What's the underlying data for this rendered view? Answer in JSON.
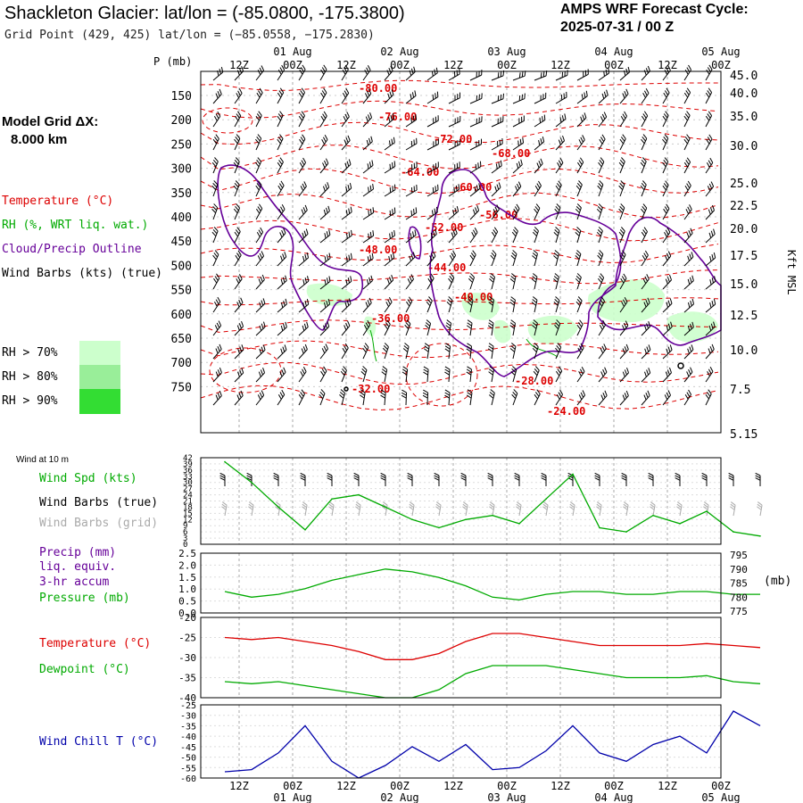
{
  "header": {
    "title": "Shackleton Glacier:  lat/lon = (-85.0800, -175.3800)",
    "subtitle": "Grid Point (429, 425) lat/lon = (−85.0558, −175.2830)",
    "cycle_line1": "AMPS WRF Forecast Cycle:",
    "cycle_line2": "2025-07-31 / 00  Z"
  },
  "legend": {
    "model_grid_label": "Model Grid ΔX:",
    "model_grid_value": "8.000 km",
    "temperature": "Temperature (°C)",
    "rh": "RH (%, WRT liq. wat.)",
    "cloud": "Cloud/Precip Outline",
    "wind": "Wind Barbs (kts) (true)",
    "rh70": "RH > 70%",
    "rh80": "RH > 80%",
    "rh90": "RH > 90%",
    "colors": {
      "rh70": "#ccffcc",
      "rh80": "#99ee99",
      "rh90": "#33dd33"
    }
  },
  "time_axis": {
    "top_hours": [
      "12Z",
      "00Z",
      "12Z",
      "00Z",
      "12Z",
      "00Z",
      "12Z",
      "00Z",
      "12Z",
      "00Z"
    ],
    "top_dates": [
      "01 Aug",
      "02 Aug",
      "03 Aug",
      "04 Aug",
      "05 Aug"
    ],
    "bottom_hours": [
      "12Z",
      "00Z",
      "12Z",
      "00Z",
      "12Z",
      "00Z",
      "12Z",
      "00Z",
      "12Z",
      "00Z"
    ],
    "bottom_dates": [
      "01 Aug",
      "02 Aug",
      "03 Aug",
      "04 Aug",
      "05 Aug"
    ]
  },
  "panel_labels": {
    "p_mb": "P (mb)",
    "kft": "Kft MSL",
    "wind10m": "Wind at 10 m",
    "wind_spd": "Wind Spd (kts)",
    "wind_true": "Wind Barbs (true)",
    "wind_grid": "Wind Barbs (grid)",
    "precip1": "Precip (mm)",
    "precip2": "liq. equiv.",
    "precip3": "3-hr accum",
    "pressure": "Pressure (mb)",
    "pressure_unit": "(mb)",
    "temperature": "Temperature (°C)",
    "dewpoint": "Dewpoint (°C)",
    "windchill": "Wind Chill T (°C)"
  },
  "colors": {
    "temperature": "#dd0000",
    "rh_dewpoint": "#00aa00",
    "cloud": "#660099",
    "wind_grid": "#aaaaaa",
    "windchill": "#0000aa"
  },
  "chart_data": [
    {
      "type": "heatmap",
      "name": "cross-section",
      "y_left_ticks": [
        "150",
        "200",
        "250",
        "300",
        "350",
        "400",
        "450",
        "500",
        "550",
        "600",
        "650",
        "700",
        "750"
      ],
      "y_right_ticks": [
        "45.0",
        "40.0",
        "35.0",
        "30.0",
        "25.0",
        "22.5",
        "20.0",
        "17.5",
        "15.0",
        "12.5",
        "10.0",
        "7.5",
        "5.15"
      ],
      "temperature_contour_labels": [
        "-80.00",
        "-76.00",
        "-72.00",
        "-68.00",
        "-64.00",
        "-60.00",
        "-56.00",
        "-52.00",
        "-48.00",
        "-44.00",
        "-40.00",
        "-36.00",
        "-32.00",
        "-28.00",
        "-24.00"
      ],
      "grid": true
    },
    {
      "type": "line",
      "name": "wind speed 10 m",
      "y_ticks": [
        "42",
        "39",
        "36",
        "33",
        "30",
        "27",
        "24",
        "21",
        "18",
        "15",
        "12",
        "9",
        "6",
        "3",
        "0"
      ],
      "ylim": [
        0,
        42
      ],
      "ylabel": "Wind Spd (kts)",
      "x_hours": [
        0,
        6,
        12,
        18,
        24,
        30,
        36,
        42,
        48,
        54,
        60,
        66,
        72,
        78,
        84,
        90,
        96,
        102,
        108,
        114,
        120
      ],
      "series": [
        {
          "name": "Wind Spd (kts)",
          "values": [
            40,
            30,
            18,
            7,
            22,
            24,
            18,
            12,
            8,
            12,
            14,
            10,
            22,
            34,
            8,
            6,
            14,
            10,
            16,
            6,
            4
          ]
        }
      ]
    },
    {
      "type": "line",
      "name": "pressure",
      "y_left_ticks": [
        "2.5",
        "2.0",
        "1.5",
        "1.0",
        "0.5",
        "0.0"
      ],
      "y_right_ticks": [
        "795",
        "790",
        "785",
        "780",
        "775"
      ],
      "ylim": [
        775,
        795
      ],
      "series": [
        {
          "name": "Pressure (mb)",
          "values": [
            782,
            780,
            781,
            783,
            786,
            788,
            790,
            789,
            787,
            784,
            780,
            779,
            781,
            782,
            782,
            781,
            781,
            782,
            782,
            781,
            781
          ]
        }
      ]
    },
    {
      "type": "line",
      "name": "temperature dewpoint",
      "y_ticks": [
        "-20",
        "-25",
        "-30",
        "-35",
        "-40"
      ],
      "ylim": [
        -40,
        -20
      ],
      "series": [
        {
          "name": "Temperature (°C)",
          "values": [
            -25,
            -25.5,
            -25,
            -26,
            -27,
            -28.5,
            -30.5,
            -30.5,
            -29,
            -26,
            -24,
            -24,
            -25,
            -26,
            -27,
            -27,
            -27,
            -27,
            -26.5,
            -27,
            -27.5
          ]
        },
        {
          "name": "Dewpoint (°C)",
          "values": [
            -36,
            -36.5,
            -36,
            -37,
            -38,
            -39,
            -40,
            -40,
            -38,
            -34,
            -32,
            -32,
            -32,
            -33,
            -34,
            -35,
            -35,
            -35,
            -34.5,
            -36,
            -36.5
          ]
        }
      ]
    },
    {
      "type": "line",
      "name": "wind chill",
      "y_ticks": [
        "-25",
        "-30",
        "-35",
        "-40",
        "-45",
        "-50",
        "-55",
        "-60"
      ],
      "ylim": [
        -60,
        -25
      ],
      "series": [
        {
          "name": "Wind Chill T (°C)",
          "values": [
            -57,
            -56,
            -48,
            -35,
            -52,
            -60,
            -54,
            -45,
            -52,
            -44,
            -56,
            -55,
            -47,
            -35,
            -48,
            -52,
            -44,
            -40,
            -48,
            -28,
            -35
          ]
        }
      ]
    }
  ]
}
